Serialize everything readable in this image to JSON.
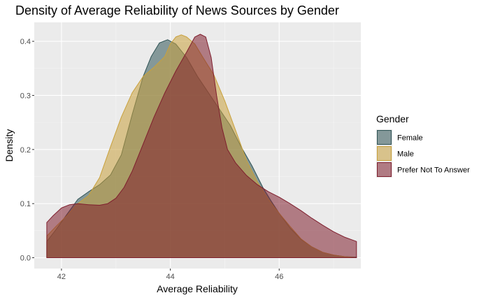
{
  "chart_data": {
    "type": "area",
    "title": "Density of Average Reliability of News Sources by Gender",
    "xlabel": "Average Reliability",
    "ylabel": "Density",
    "xlim": [
      41.5,
      47.5
    ],
    "ylim": [
      -0.02,
      0.435
    ],
    "xticks": [
      42,
      44,
      46
    ],
    "yticks": [
      0.0,
      0.1,
      0.2,
      0.3,
      0.4
    ],
    "xtick_labels": [
      "42",
      "44",
      "46"
    ],
    "ytick_labels": [
      "0.0",
      "0.1",
      "0.2",
      "0.3",
      "0.4"
    ],
    "grid": true,
    "legend": {
      "title": "Gender",
      "position": "right"
    },
    "series": [
      {
        "name": "Female",
        "fill": "#2f5355",
        "stroke": "#2f5355",
        "points": [
          [
            41.73,
            0.03
          ],
          [
            41.9,
            0.052
          ],
          [
            42.1,
            0.08
          ],
          [
            42.3,
            0.108
          ],
          [
            42.5,
            0.122
          ],
          [
            42.7,
            0.135
          ],
          [
            42.9,
            0.153
          ],
          [
            43.1,
            0.19
          ],
          [
            43.3,
            0.265
          ],
          [
            43.5,
            0.335
          ],
          [
            43.65,
            0.372
          ],
          [
            43.8,
            0.397
          ],
          [
            43.95,
            0.403
          ],
          [
            44.1,
            0.395
          ],
          [
            44.3,
            0.37
          ],
          [
            44.5,
            0.335
          ],
          [
            44.7,
            0.305
          ],
          [
            44.9,
            0.275
          ],
          [
            45.1,
            0.245
          ],
          [
            45.3,
            0.205
          ],
          [
            45.5,
            0.17
          ],
          [
            45.7,
            0.13
          ],
          [
            45.85,
            0.105
          ],
          [
            46.0,
            0.082
          ],
          [
            46.2,
            0.055
          ],
          [
            46.4,
            0.034
          ],
          [
            46.6,
            0.02
          ],
          [
            46.8,
            0.01
          ],
          [
            47.0,
            0.005
          ],
          [
            47.2,
            0.002
          ],
          [
            47.42,
            0.001
          ]
        ]
      },
      {
        "name": "Male",
        "fill": "#c9a13c",
        "stroke": "#c9a13c",
        "points": [
          [
            41.73,
            0.04
          ],
          [
            41.9,
            0.058
          ],
          [
            42.1,
            0.078
          ],
          [
            42.3,
            0.1
          ],
          [
            42.5,
            0.115
          ],
          [
            42.7,
            0.148
          ],
          [
            42.9,
            0.205
          ],
          [
            43.1,
            0.26
          ],
          [
            43.3,
            0.305
          ],
          [
            43.5,
            0.335
          ],
          [
            43.7,
            0.352
          ],
          [
            43.9,
            0.372
          ],
          [
            44.0,
            0.395
          ],
          [
            44.1,
            0.408
          ],
          [
            44.2,
            0.412
          ],
          [
            44.3,
            0.408
          ],
          [
            44.45,
            0.395
          ],
          [
            44.6,
            0.37
          ],
          [
            44.8,
            0.338
          ],
          [
            45.0,
            0.29
          ],
          [
            45.2,
            0.235
          ],
          [
            45.4,
            0.18
          ],
          [
            45.6,
            0.14
          ],
          [
            45.8,
            0.108
          ],
          [
            46.0,
            0.082
          ],
          [
            46.2,
            0.058
          ],
          [
            46.4,
            0.035
          ],
          [
            46.6,
            0.02
          ],
          [
            46.8,
            0.01
          ],
          [
            47.0,
            0.005
          ],
          [
            47.2,
            0.002
          ],
          [
            47.42,
            0.0
          ]
        ]
      },
      {
        "name": "Prefer Not To Answer",
        "fill": "#7f1f2e",
        "stroke": "#7f1f2e",
        "points": [
          [
            41.73,
            0.065
          ],
          [
            41.85,
            0.078
          ],
          [
            42.0,
            0.092
          ],
          [
            42.15,
            0.098
          ],
          [
            42.3,
            0.1
          ],
          [
            42.5,
            0.098
          ],
          [
            42.7,
            0.097
          ],
          [
            42.85,
            0.1
          ],
          [
            43.0,
            0.11
          ],
          [
            43.15,
            0.13
          ],
          [
            43.3,
            0.16
          ],
          [
            43.5,
            0.21
          ],
          [
            43.7,
            0.26
          ],
          [
            43.9,
            0.305
          ],
          [
            44.1,
            0.345
          ],
          [
            44.3,
            0.38
          ],
          [
            44.45,
            0.408
          ],
          [
            44.55,
            0.413
          ],
          [
            44.65,
            0.408
          ],
          [
            44.75,
            0.37
          ],
          [
            44.85,
            0.3
          ],
          [
            44.95,
            0.24
          ],
          [
            45.05,
            0.2
          ],
          [
            45.2,
            0.175
          ],
          [
            45.4,
            0.152
          ],
          [
            45.6,
            0.135
          ],
          [
            45.8,
            0.122
          ],
          [
            46.0,
            0.112
          ],
          [
            46.2,
            0.1
          ],
          [
            46.4,
            0.087
          ],
          [
            46.6,
            0.073
          ],
          [
            46.8,
            0.06
          ],
          [
            47.0,
            0.048
          ],
          [
            47.2,
            0.038
          ],
          [
            47.42,
            0.03
          ]
        ]
      }
    ]
  }
}
